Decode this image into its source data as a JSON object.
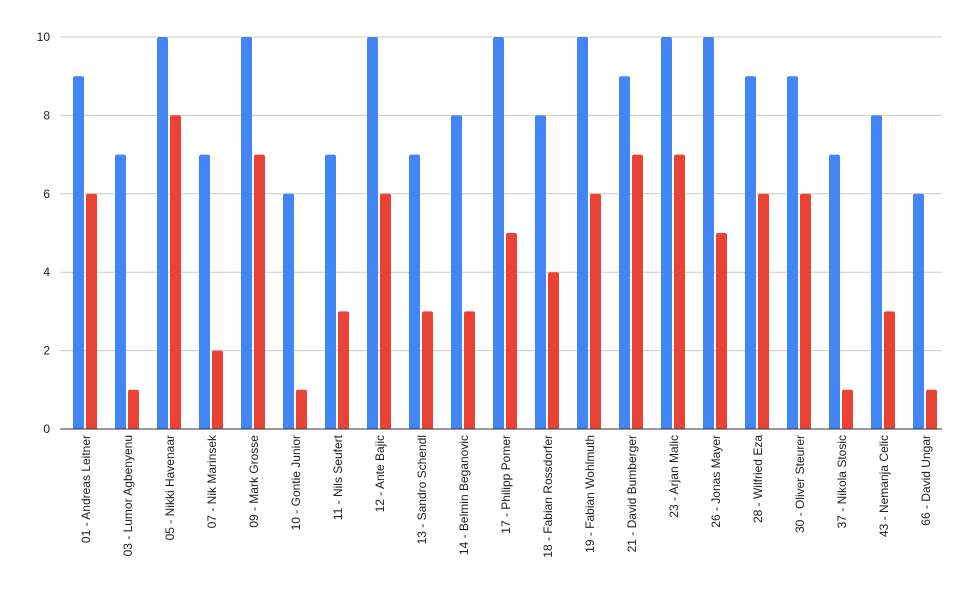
{
  "chart_data": {
    "type": "bar",
    "title": "",
    "xlabel": "",
    "ylabel": "",
    "ylim": [
      0,
      10
    ],
    "yticks": [
      0,
      2,
      4,
      6,
      8,
      10
    ],
    "grid": true,
    "legend": "none",
    "categories": [
      "01 - Andreas Leitner",
      "03 - Lumor Agbenyenu",
      "05 - Nikki Havenaar",
      "07 - Nik Marinsek",
      "09 - Mark Grosse",
      "10 - Gontie Junior",
      "11 - Nils Seufert",
      "12 - Ante Bajic",
      "13 - Sandro Schendl",
      "14 - Belmin Beganovic",
      "17 - Philipp Pomer",
      "18 - Fabian Rossdorfer",
      "19 - Fabian Wohlmuth",
      "21 - David Bumberger",
      "23 - Arjan Malic",
      "26 - Jonas Mayer",
      "28 - Wilfried Eza",
      "30 - Oliver Steurer",
      "37 - Nikola Stosic",
      "43 - Nemanja Celic",
      "66 - David Ungar"
    ],
    "series": [
      {
        "color": "#4285f4",
        "values": [
          9,
          7,
          10,
          7,
          10,
          6,
          7,
          10,
          7,
          8,
          10,
          8,
          10,
          9,
          10,
          10,
          9,
          9,
          7,
          8,
          6
        ]
      },
      {
        "color": "#ea4335",
        "values": [
          6,
          1,
          8,
          2,
          7,
          1,
          3,
          6,
          3,
          3,
          5,
          4,
          6,
          7,
          7,
          5,
          6,
          6,
          1,
          3,
          1
        ]
      }
    ]
  }
}
